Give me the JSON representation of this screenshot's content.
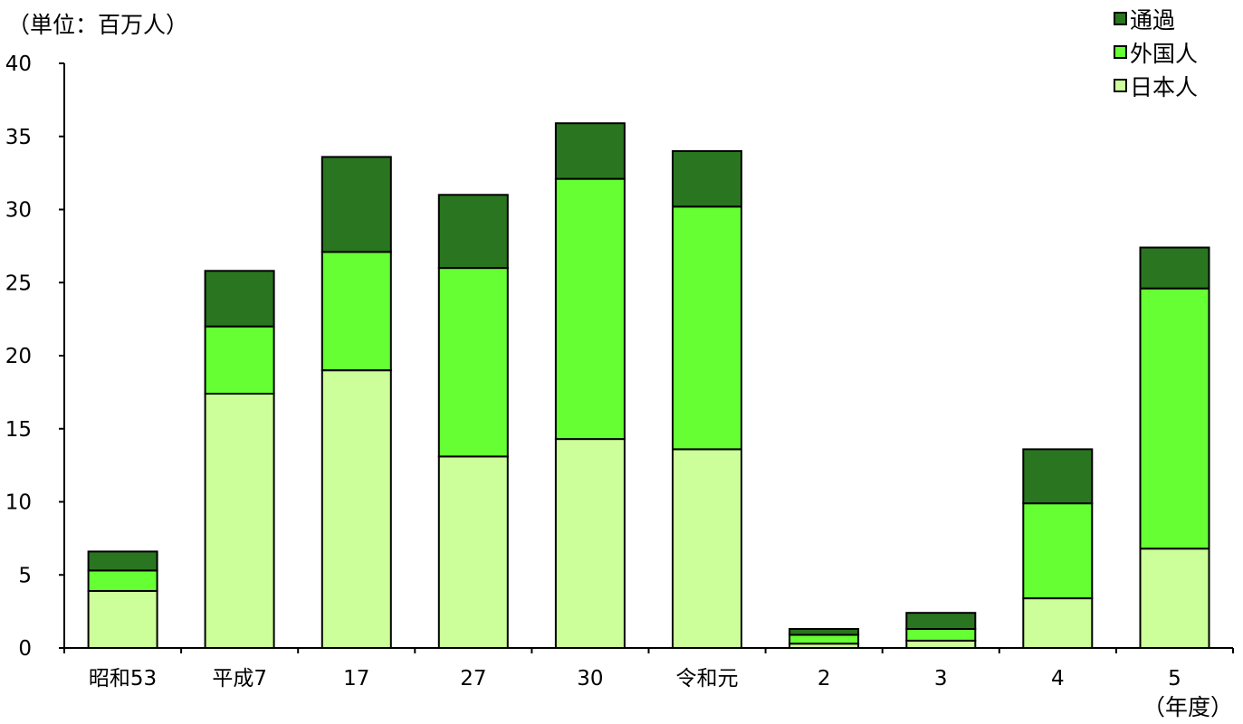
{
  "unit_label": "（単位：百万人）",
  "x_unit_label": "（年度）",
  "colors": {
    "japanese": "#ccff99",
    "foreign": "#66ff33",
    "transit": "#2a7520",
    "outline": "#000000"
  },
  "chart_data": {
    "type": "bar",
    "stacked": true,
    "title": "",
    "xlabel": "（年度）",
    "ylabel": "（単位：百万人）",
    "ylim": [
      0,
      40
    ],
    "yticks": [
      0,
      5,
      10,
      15,
      20,
      25,
      30,
      35,
      40
    ],
    "grid": false,
    "legend_position": "top-right",
    "categories": [
      "昭和53",
      "平成7",
      "17",
      "27",
      "30",
      "令和元",
      "2",
      "3",
      "4",
      "5"
    ],
    "series": [
      {
        "name": "日本人",
        "color": "#ccff99",
        "values": [
          3.9,
          17.4,
          19.0,
          13.1,
          14.3,
          13.6,
          0.3,
          0.5,
          3.4,
          6.8
        ]
      },
      {
        "name": "外国人",
        "color": "#66ff33",
        "values": [
          1.4,
          4.6,
          8.1,
          12.9,
          17.8,
          16.6,
          0.6,
          0.8,
          6.5,
          17.8
        ]
      },
      {
        "name": "通過",
        "color": "#2a7520",
        "values": [
          1.3,
          3.8,
          6.5,
          5.0,
          3.8,
          3.8,
          0.4,
          1.1,
          3.7,
          2.8
        ]
      }
    ]
  }
}
